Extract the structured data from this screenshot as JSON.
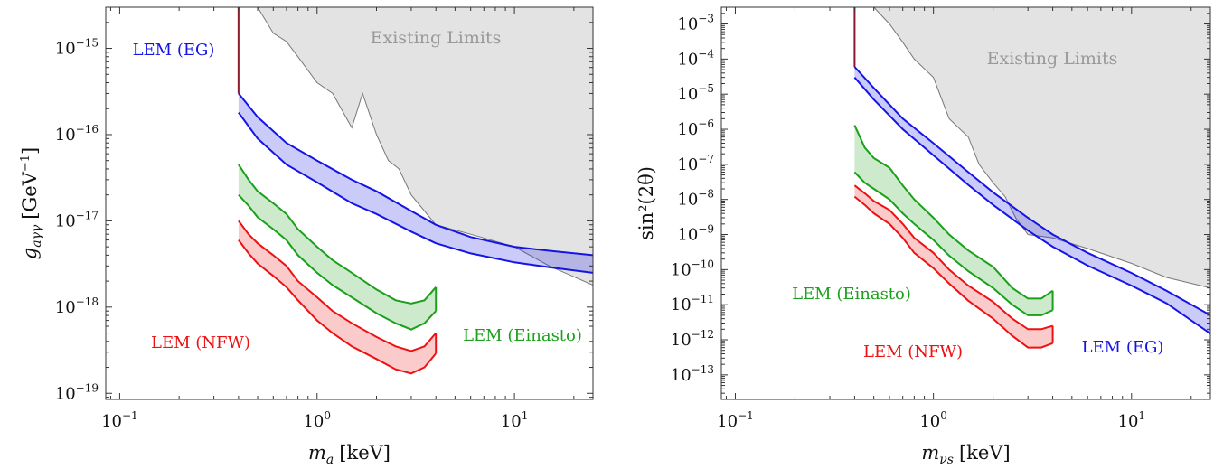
{
  "chart_data": [
    {
      "type": "line",
      "xlabel_main": "m",
      "xlabel_sub": "a",
      "xlabel_unit": "[keV]",
      "ylabel_main": "g",
      "ylabel_sub": "aγγ",
      "ylabel_unit": "[GeV",
      "ylabel_exp": "−1",
      "ylabel_close": "]",
      "xscale": "log",
      "yscale": "log",
      "xlim": [
        0.085,
        25
      ],
      "ylim": [
        8.5e-20,
        3e-15
      ],
      "xticks": [
        {
          "base": "10",
          "exp": "−1",
          "value": 0.1
        },
        {
          "base": "10",
          "exp": "0",
          "value": 1
        },
        {
          "base": "10",
          "exp": "1",
          "value": 10
        }
      ],
      "yticks": [
        {
          "base": "10",
          "exp": "−15",
          "value": 1e-15
        },
        {
          "base": "10",
          "exp": "−16",
          "value": 1e-16
        },
        {
          "base": "10",
          "exp": "−17",
          "value": 1e-17
        },
        {
          "base": "10",
          "exp": "−18",
          "value": 1e-18
        },
        {
          "base": "10",
          "exp": "−19",
          "value": 1e-19
        }
      ],
      "existing_limits": {
        "label": "Existing Limits",
        "x": [
          0.4,
          0.5,
          0.6,
          0.7,
          0.8,
          1.0,
          1.2,
          1.5,
          1.7,
          2.0,
          2.3,
          2.6,
          3.0,
          4.0,
          6.0,
          10,
          15,
          25
        ],
        "y": [
          3e-15,
          3e-15,
          1.5e-15,
          1.2e-15,
          8e-16,
          4e-16,
          3e-16,
          1.2e-16,
          3e-16,
          1e-16,
          5e-17,
          4e-17,
          2e-17,
          9e-18,
          7e-18,
          5e-18,
          3e-18,
          1.8e-18
        ]
      },
      "series": [
        {
          "name": "LEM (EG)",
          "color": "#1414e6",
          "x": [
            0.4,
            0.5,
            0.7,
            1.0,
            1.5,
            2.0,
            3.0,
            4.0,
            6.0,
            10,
            15,
            25
          ],
          "upper": [
            3e-16,
            1.6e-16,
            8e-17,
            5e-17,
            3e-17,
            2.2e-17,
            1.3e-17,
            9e-18,
            6.5e-18,
            5e-18,
            4.5e-18,
            4e-18
          ],
          "lower": [
            1.8e-16,
            9e-17,
            4.5e-17,
            2.8e-17,
            1.6e-17,
            1.2e-17,
            7.5e-18,
            5.5e-18,
            4.2e-18,
            3.3e-18,
            2.9e-18,
            2.5e-18
          ]
        },
        {
          "name": "LEM (Einasto)",
          "color": "#1aa01a",
          "x": [
            0.4,
            0.45,
            0.5,
            0.6,
            0.7,
            0.8,
            1.0,
            1.2,
            1.5,
            2.0,
            2.5,
            3.0,
            3.5,
            4.0
          ],
          "upper": [
            4.5e-17,
            3e-17,
            2.2e-17,
            1.6e-17,
            1.2e-17,
            8e-18,
            5e-18,
            3.5e-18,
            2.5e-18,
            1.6e-18,
            1.2e-18,
            1.1e-18,
            1.2e-18,
            1.7e-18
          ],
          "lower": [
            2e-17,
            1.5e-17,
            1.1e-17,
            8e-18,
            6e-18,
            4e-18,
            2.5e-18,
            1.8e-18,
            1.3e-18,
            8.5e-19,
            6.5e-19,
            5.5e-19,
            6.5e-19,
            9e-19
          ]
        },
        {
          "name": "LEM (NFW)",
          "color": "#ee1111",
          "x": [
            0.4,
            0.45,
            0.5,
            0.6,
            0.7,
            0.8,
            1.0,
            1.2,
            1.5,
            2.0,
            2.5,
            3.0,
            3.5,
            4.0
          ],
          "upper": [
            1e-17,
            7e-18,
            5.5e-18,
            4e-18,
            3e-18,
            2e-18,
            1.3e-18,
            9e-19,
            6.5e-19,
            4.5e-19,
            3.5e-19,
            3.1e-19,
            3.5e-19,
            5e-19
          ],
          "lower": [
            6e-18,
            4.2e-18,
            3.2e-18,
            2.3e-18,
            1.7e-18,
            1.2e-18,
            7e-19,
            5e-19,
            3.5e-19,
            2.5e-19,
            1.9e-19,
            1.7e-19,
            2e-19,
            2.9e-19
          ]
        }
      ],
      "band_labels": [
        {
          "text": "LEM (EG)",
          "color": "#1414e6"
        },
        {
          "text": "LEM (NFW)",
          "color": "#ee1111"
        },
        {
          "text": "LEM (Einasto)",
          "color": "#1aa01a"
        }
      ]
    },
    {
      "type": "line",
      "xlabel_main": "m",
      "xlabel_sub": "νs",
      "xlabel_unit": "[keV]",
      "ylabel_main": "sin²(2θ)",
      "xscale": "log",
      "yscale": "log",
      "xlim": [
        0.085,
        25
      ],
      "ylim": [
        2e-14,
        0.003
      ],
      "xticks": [
        {
          "base": "10",
          "exp": "−1",
          "value": 0.1
        },
        {
          "base": "10",
          "exp": "0",
          "value": 1
        },
        {
          "base": "10",
          "exp": "1",
          "value": 10
        }
      ],
      "yticks": [
        {
          "base": "10",
          "exp": "−3",
          "value": 0.001
        },
        {
          "base": "10",
          "exp": "−4",
          "value": 0.0001
        },
        {
          "base": "10",
          "exp": "−5",
          "value": 1e-05
        },
        {
          "base": "10",
          "exp": "−6",
          "value": 1e-06
        },
        {
          "base": "10",
          "exp": "−7",
          "value": 1e-07
        },
        {
          "base": "10",
          "exp": "−8",
          "value": 1e-08
        },
        {
          "base": "10",
          "exp": "−9",
          "value": 1e-09
        },
        {
          "base": "10",
          "exp": "−10",
          "value": 1e-10
        },
        {
          "base": "10",
          "exp": "−11",
          "value": 1e-11
        },
        {
          "base": "10",
          "exp": "−12",
          "value": 1e-12
        },
        {
          "base": "10",
          "exp": "−13",
          "value": 1e-13
        }
      ],
      "existing_limits": {
        "label": "Existing Limits",
        "x": [
          0.4,
          0.5,
          0.6,
          0.7,
          0.8,
          1.0,
          1.2,
          1.5,
          1.7,
          2.0,
          2.3,
          2.6,
          3.0,
          4.0,
          6.0,
          10,
          15,
          25
        ],
        "y": [
          0.003,
          0.003,
          0.001,
          0.0003,
          0.0001,
          3e-05,
          2e-06,
          6e-07,
          1e-07,
          3e-08,
          1.2e-08,
          3e-09,
          1e-09,
          8e-10,
          4e-10,
          1.5e-10,
          6e-11,
          3e-11
        ]
      },
      "series": [
        {
          "name": "LEM (EG)",
          "color": "#1414e6",
          "x": [
            0.4,
            0.5,
            0.7,
            1.0,
            1.5,
            2.0,
            3.0,
            4.0,
            6.0,
            10,
            15,
            25
          ],
          "upper": [
            6e-05,
            1.5e-05,
            2e-06,
            4e-07,
            6e-08,
            1.6e-08,
            3e-09,
            1e-09,
            3e-10,
            8e-11,
            2.5e-11,
            5e-12
          ],
          "lower": [
            3e-05,
            7e-06,
            1e-06,
            1.8e-07,
            2.6e-08,
            7e-09,
            1.3e-09,
            4.5e-10,
            1.3e-10,
            3.5e-11,
            1.1e-11,
            1.5e-12
          ]
        },
        {
          "name": "LEM (Einasto)",
          "color": "#1aa01a",
          "x": [
            0.4,
            0.45,
            0.5,
            0.6,
            0.7,
            0.8,
            1.0,
            1.2,
            1.5,
            2.0,
            2.5,
            3.0,
            3.5,
            4.0
          ],
          "upper": [
            1.3e-06,
            3e-07,
            1.5e-07,
            8e-08,
            2.5e-08,
            1e-08,
            3e-09,
            1e-09,
            3.5e-10,
            1.2e-10,
            3e-11,
            1.5e-11,
            1.5e-11,
            2.5e-11
          ],
          "lower": [
            6e-08,
            3e-08,
            2e-08,
            1e-08,
            4e-09,
            2e-09,
            7e-10,
            2.5e-10,
            9e-11,
            3e-11,
            1e-11,
            5e-12,
            5e-12,
            7e-12
          ]
        },
        {
          "name": "LEM (NFW)",
          "color": "#ee1111",
          "x": [
            0.4,
            0.45,
            0.5,
            0.6,
            0.7,
            0.8,
            1.0,
            1.2,
            1.5,
            2.0,
            2.5,
            3.0,
            3.5,
            4.0
          ],
          "upper": [
            2.5e-08,
            1.5e-08,
            9e-09,
            5e-09,
            2e-09,
            8e-10,
            3e-10,
            1e-10,
            3.5e-11,
            1.2e-11,
            4e-12,
            2e-12,
            2e-12,
            2.5e-12
          ],
          "lower": [
            1.2e-08,
            7e-09,
            4e-09,
            2e-09,
            8e-10,
            3e-10,
            1.1e-10,
            4e-11,
            1.3e-11,
            4e-12,
            1.3e-12,
            6e-13,
            6e-13,
            8e-13
          ]
        }
      ],
      "band_labels": [
        {
          "text": "LEM (Einasto)",
          "color": "#1aa01a"
        },
        {
          "text": "LEM (NFW)",
          "color": "#ee1111"
        },
        {
          "text": "LEM (EG)",
          "color": "#1414e6"
        }
      ]
    }
  ]
}
